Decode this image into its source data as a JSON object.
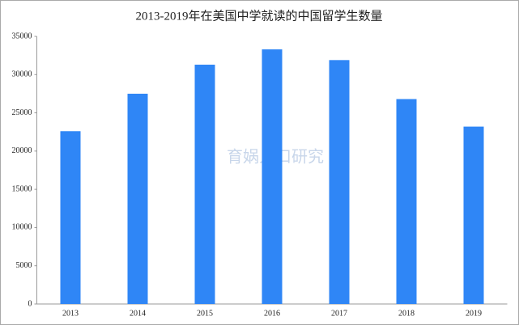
{
  "chart_data": {
    "type": "bar",
    "title": "2013-2019年在美国中学就读的中国留学生数量",
    "watermark": "育娲人口研究",
    "categories": [
      "2013",
      "2014",
      "2015",
      "2016",
      "2017",
      "2018",
      "2019"
    ],
    "values": [
      22600,
      27500,
      31300,
      33300,
      31900,
      26800,
      23200
    ],
    "color": "#2f86f6",
    "ylim": [
      0,
      35000
    ],
    "yticks": [
      0,
      5000,
      10000,
      15000,
      20000,
      25000,
      30000,
      35000
    ],
    "grid": false
  }
}
